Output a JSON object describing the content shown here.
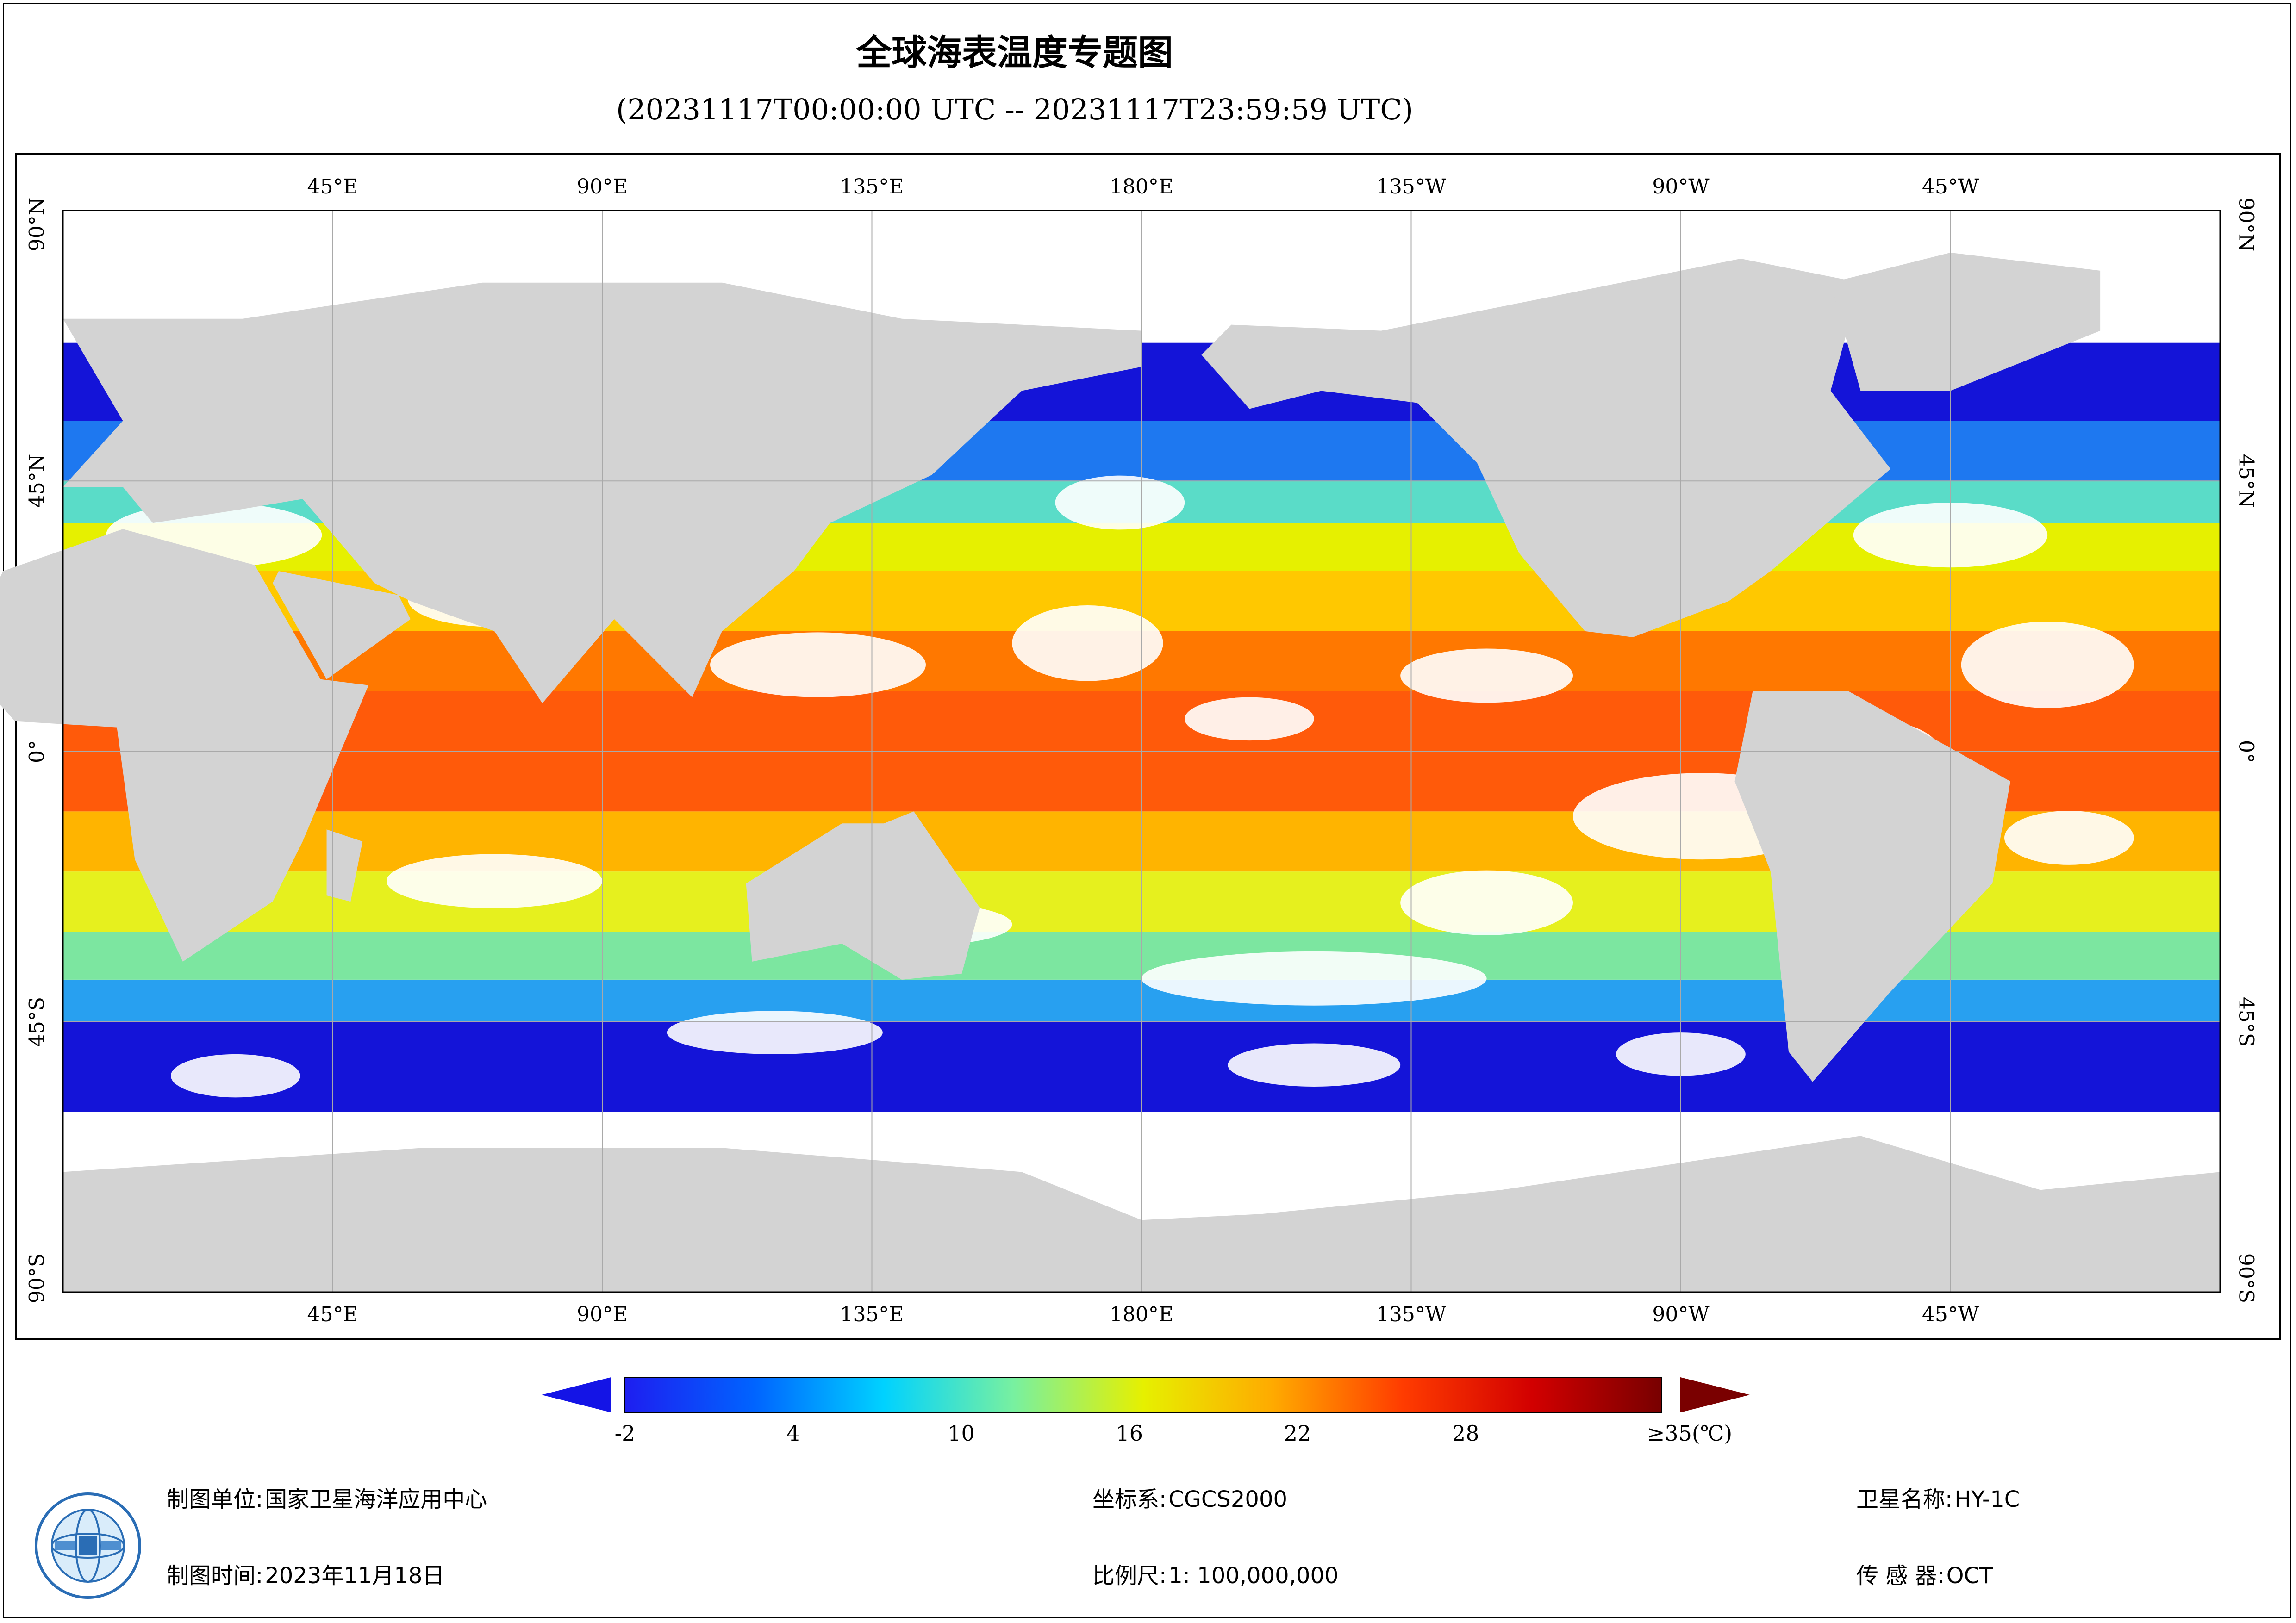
{
  "title": "全球海表温度专题图",
  "subtitle": "(20231117T00:00:00 UTC -- 20231117T23:59:59 UTC)",
  "lon_ticks": [
    {
      "label": "45°E",
      "lon": 45
    },
    {
      "label": "90°E",
      "lon": 90
    },
    {
      "label": "135°E",
      "lon": 135
    },
    {
      "label": "180°E",
      "lon": 180
    },
    {
      "label": "135°W",
      "lon": 225
    },
    {
      "label": "90°W",
      "lon": 270
    },
    {
      "label": "45°W",
      "lon": 315
    }
  ],
  "lat_ticks": [
    {
      "label": "90°N",
      "lat": 90
    },
    {
      "label": "45°N",
      "lat": 45
    },
    {
      "label": "0°",
      "lat": 0
    },
    {
      "label": "45°S",
      "lat": -45
    },
    {
      "label": "90°S",
      "lat": -90
    }
  ],
  "map": {
    "lon_range": [
      0,
      360
    ],
    "lat_range": [
      -90,
      90
    ],
    "land_color": "#d3d3d3",
    "cloud_color": "#ffffff",
    "grid_color": "#a9a9a9",
    "sst_zones": [
      {
        "lat_range": [
          -90,
          -60
        ],
        "color": "#ffffff"
      },
      {
        "lat_range": [
          -60,
          -45
        ],
        "color": "#1414d8"
      },
      {
        "lat_range": [
          -45,
          -38
        ],
        "color": "#28a0f0"
      },
      {
        "lat_range": [
          -38,
          -30
        ],
        "color": "#7ce6a0"
      },
      {
        "lat_range": [
          -30,
          -20
        ],
        "color": "#e6f01e"
      },
      {
        "lat_range": [
          -20,
          -10
        ],
        "color": "#ffb400"
      },
      {
        "lat_range": [
          -10,
          10
        ],
        "color": "#ff5a0a"
      },
      {
        "lat_range": [
          10,
          20
        ],
        "color": "#ff7800"
      },
      {
        "lat_range": [
          20,
          30
        ],
        "color": "#ffc800"
      },
      {
        "lat_range": [
          30,
          38
        ],
        "color": "#e6f000"
      },
      {
        "lat_range": [
          38,
          45
        ],
        "color": "#5adcc8"
      },
      {
        "lat_range": [
          45,
          55
        ],
        "color": "#1e78f0"
      },
      {
        "lat_range": [
          55,
          68
        ],
        "color": "#1414d8"
      },
      {
        "lat_range": [
          68,
          90
        ],
        "color": "#ffffff"
      }
    ]
  },
  "legend": {
    "labels": [
      "-2",
      "4",
      "10",
      "16",
      "22",
      "28",
      "≥35(℃)"
    ],
    "label_values": [
      -2,
      4,
      10,
      16,
      22,
      28,
      35
    ],
    "range": [
      -2,
      35
    ],
    "stops": [
      "#1e1ef0",
      "#0064ff",
      "#00d2ff",
      "#78f0a0",
      "#e6f000",
      "#ffaa00",
      "#ff3c00",
      "#d20000",
      "#780000"
    ],
    "under_color": "#1414e6",
    "over_color": "#7a0000"
  },
  "footer": {
    "org_label": "制图单位:",
    "org_value": "国家卫星海洋应用中心",
    "time_label": "制图时间:",
    "time_value": "2023年11月18日",
    "crs_label": "坐标系:",
    "crs_value": "CGCS2000",
    "scale_label": "比例尺:",
    "scale_value": "1: 100,000,000",
    "sat_label": "卫星名称:",
    "sat_value": "HY-1C",
    "sensor_label": "传 感 器:",
    "sensor_value": "OCT"
  }
}
